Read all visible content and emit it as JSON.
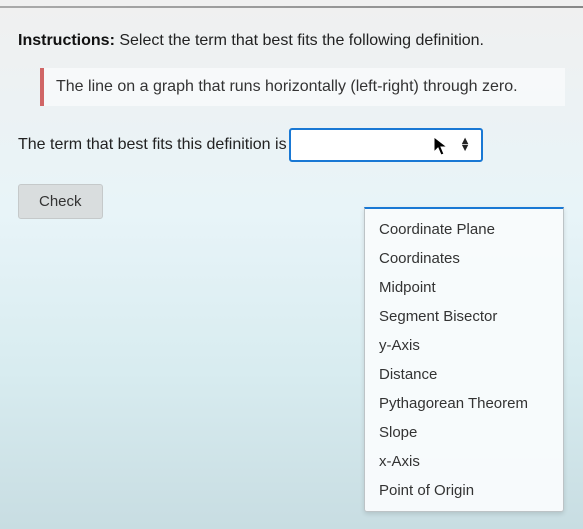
{
  "instructions": {
    "label": "Instructions:",
    "text": "Select the term that best fits the following definition."
  },
  "definition": "The line on a graph that runs horizontally (left-right) through zero.",
  "prompt": "The term that best fits this definition is",
  "select": {
    "value": "",
    "options": [
      "Coordinate Plane",
      "Coordinates",
      "Midpoint",
      "Segment Bisector",
      "y-Axis",
      "Distance",
      "Pythagorean Theorem",
      "Slope",
      "x-Axis",
      "Point of Origin"
    ]
  },
  "check_label": "Check",
  "colors": {
    "select_border": "#1978d4",
    "definition_border": "#d06666",
    "button_bg": "#d9ddde"
  }
}
